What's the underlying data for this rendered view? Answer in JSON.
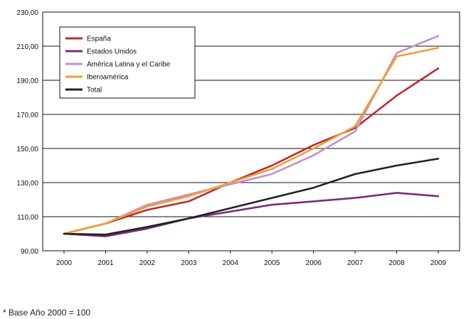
{
  "chart_data": {
    "type": "line",
    "x": [
      "2000",
      "2001",
      "2002",
      "2003",
      "2004",
      "2005",
      "2006",
      "2007",
      "2008",
      "2009"
    ],
    "ylim": [
      90,
      230
    ],
    "yticks": [
      "90,00",
      "110,00",
      "130,00",
      "150,00",
      "170,00",
      "190,00",
      "210,00",
      "230,00"
    ],
    "grid": true,
    "legend_position": "top-left",
    "series": [
      {
        "name": "España",
        "color": "#c0282d",
        "values": [
          100,
          106,
          114,
          119,
          130,
          140,
          152,
          162,
          181,
          197
        ]
      },
      {
        "name": "Estados Unidos",
        "color": "#7b2c7d",
        "values": [
          100,
          98.5,
          103,
          109,
          113,
          117,
          119,
          121,
          124,
          122
        ]
      },
      {
        "name": "América Latina y el Caribe",
        "color": "#c48fc4",
        "values": [
          100,
          106,
          117,
          123,
          129,
          135,
          146,
          160,
          206,
          216
        ]
      },
      {
        "name": "Iberoamérica",
        "color": "#f0a030",
        "values": [
          100,
          106,
          116,
          122,
          130,
          138,
          150,
          163,
          204,
          209
        ]
      },
      {
        "name": "Total",
        "color": "#222222",
        "values": [
          100,
          99.5,
          104,
          109,
          115,
          121,
          127,
          135,
          140,
          144
        ]
      }
    ]
  },
  "footnote": "* Base Año 2000 = 100"
}
